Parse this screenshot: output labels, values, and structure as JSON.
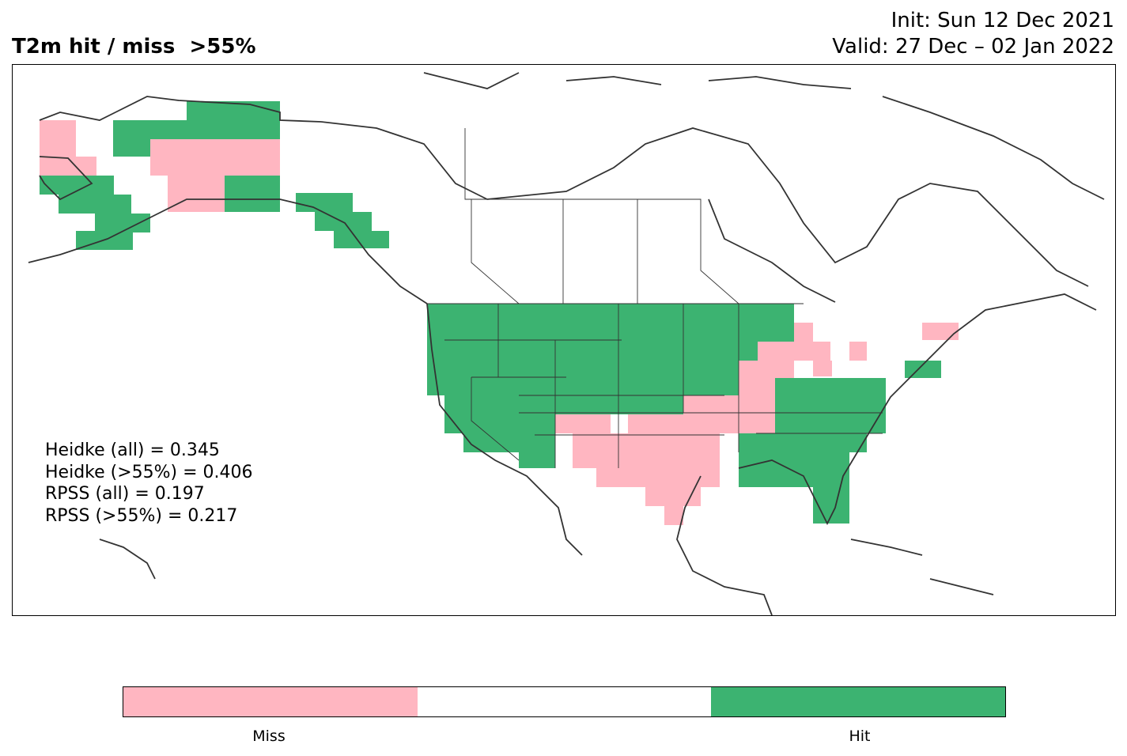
{
  "title": "T2m hit / miss  >55%",
  "init": "Init: Sun 12 Dec 2021",
  "valid": "Valid: 27 Dec – 02 Jan 2022",
  "scores": [
    "Heidke (all) = 0.345",
    "Heidke (>55%) = 0.406",
    "RPSS (all) = 0.197",
    "RPSS (>55%) = 0.217"
  ],
  "colors": {
    "hit": "#3cb371",
    "miss": "#ffb6c1",
    "neutral": "#ffffff",
    "coast": "#333333"
  },
  "colorbar": [
    {
      "label": "Miss",
      "color": "#ffb6c1"
    },
    {
      "label": "",
      "color": "#ffffff"
    },
    {
      "label": "Hit",
      "color": "#3cb371"
    }
  ]
}
